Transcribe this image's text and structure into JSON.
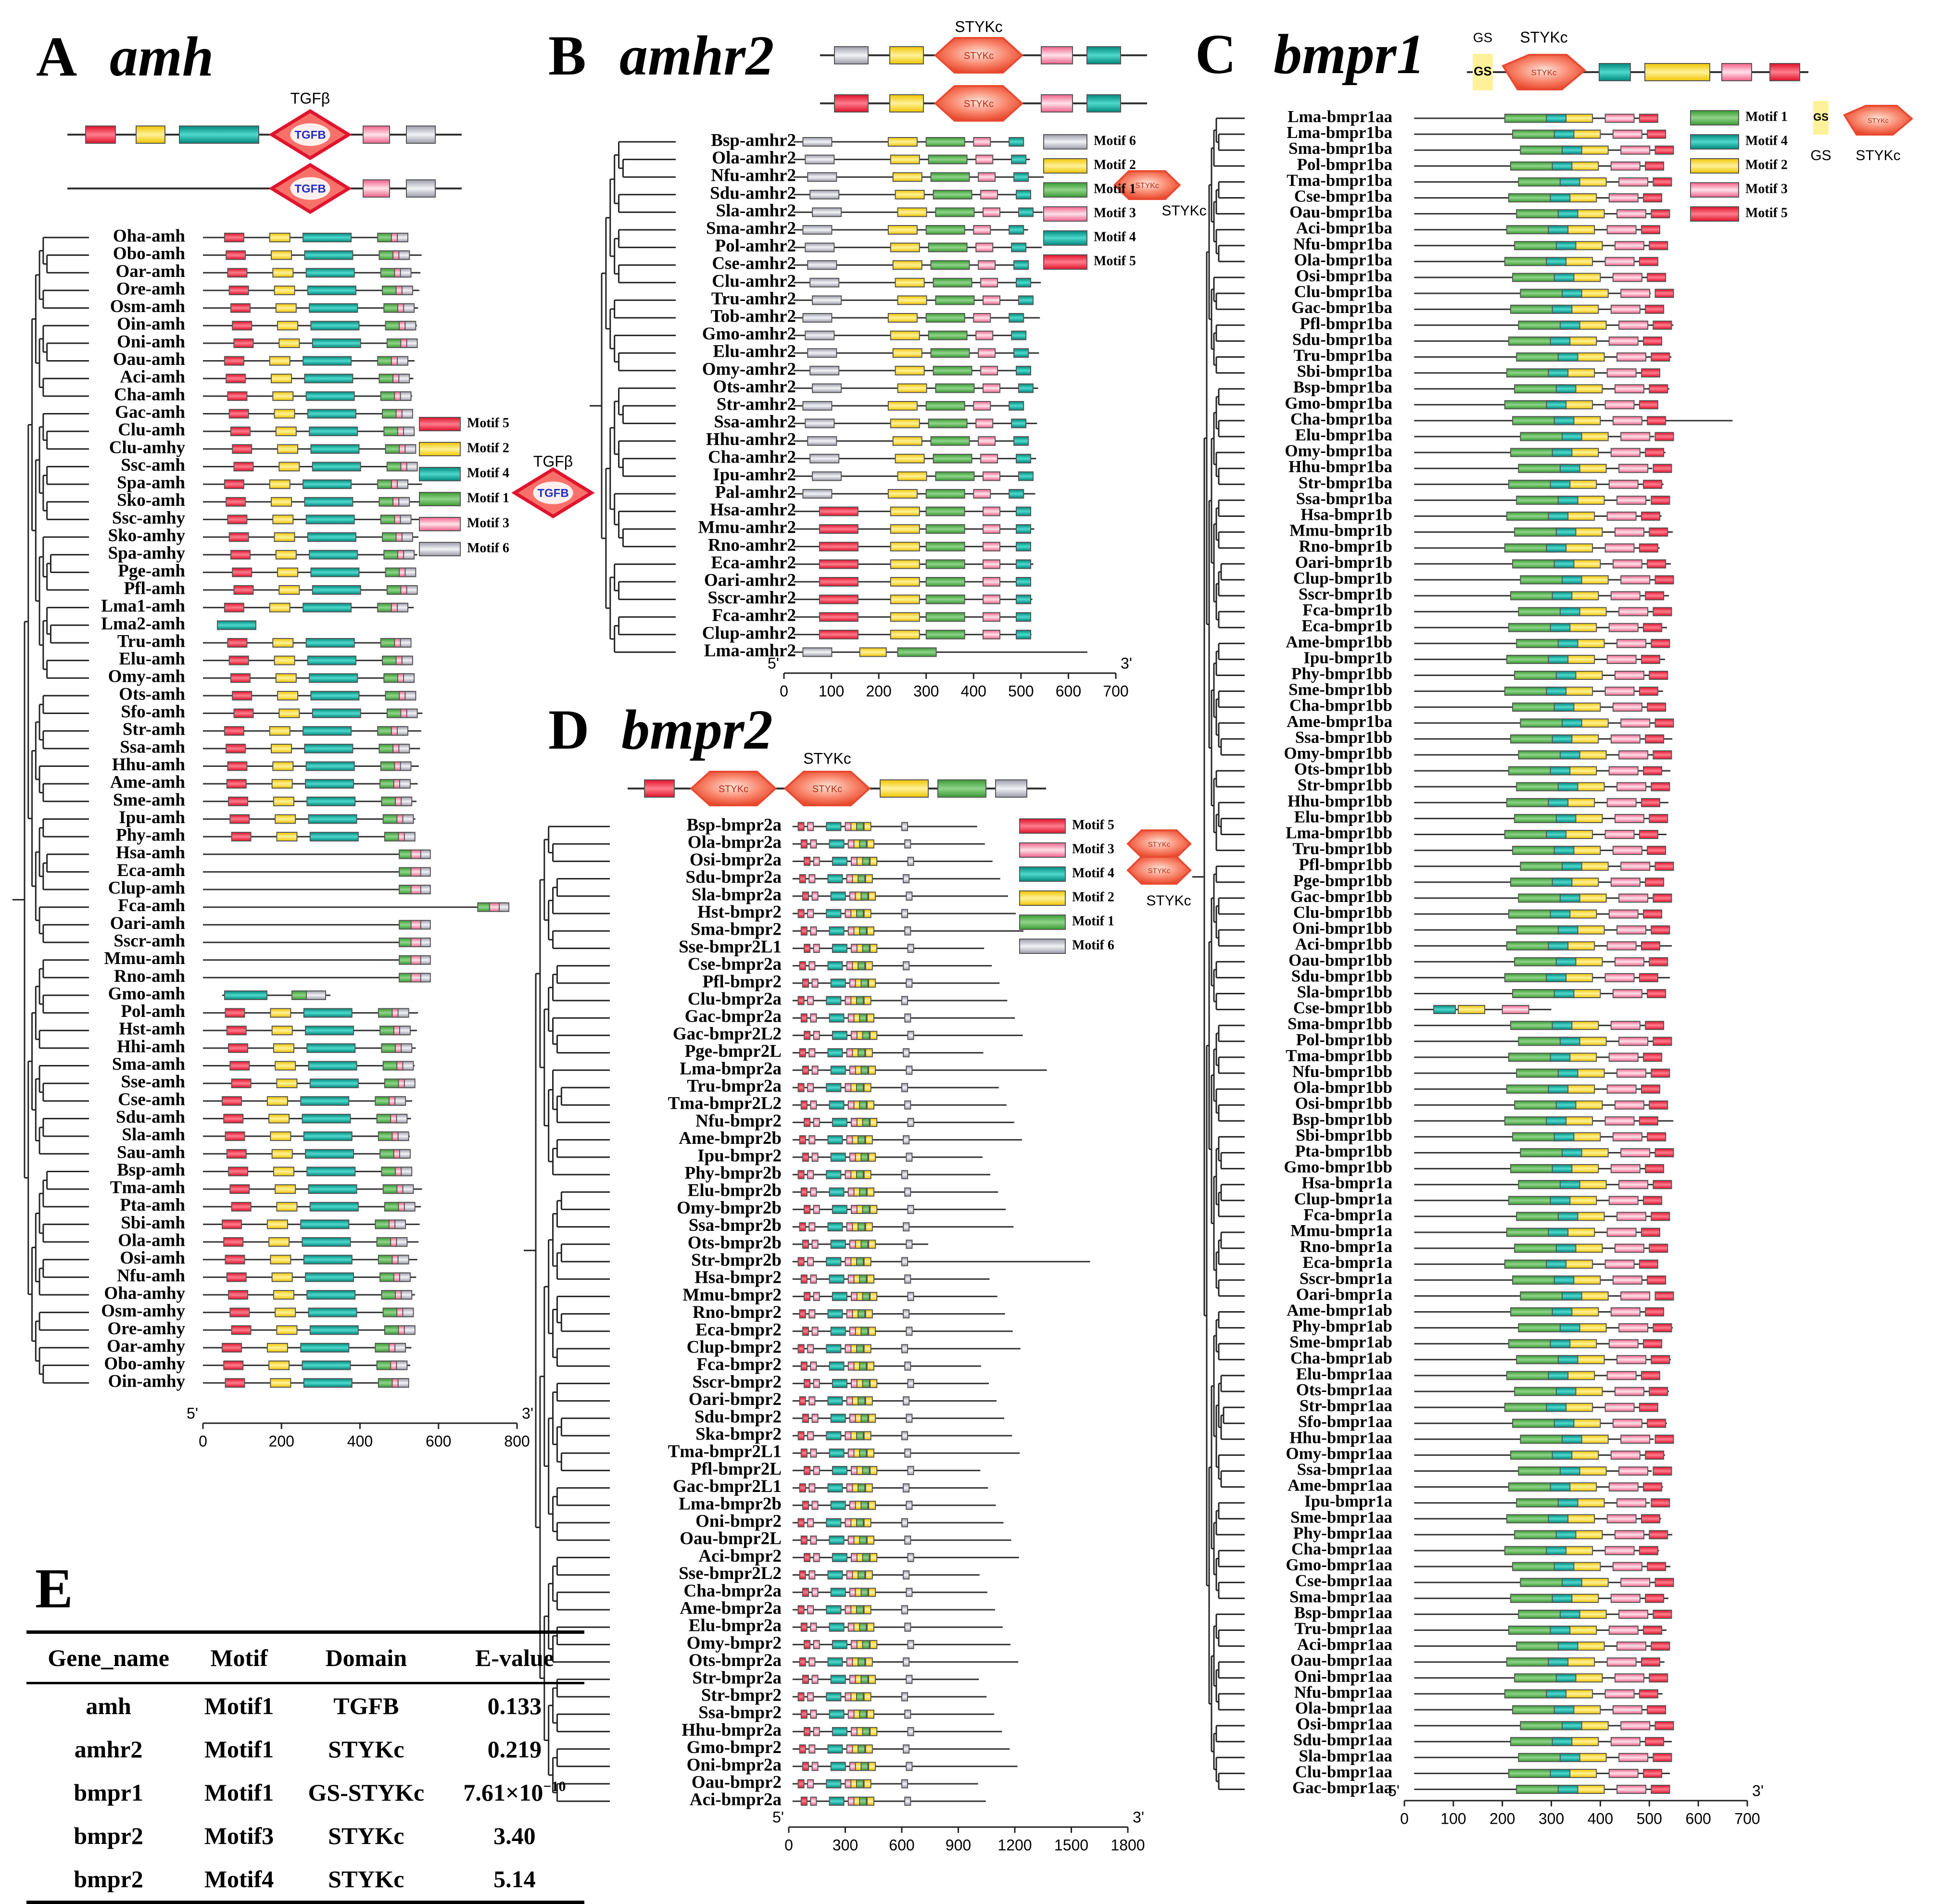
{
  "panels": {
    "A": {
      "letter": "A",
      "gene": "amh",
      "domain": "TGFβ",
      "domain_tag": "TGFB",
      "axis": {
        "start": "5'",
        "end": "3'",
        "ticks": [
          "0",
          "200",
          "400",
          "600",
          "800"
        ],
        "max": 800
      },
      "legend": [
        "Motif 5",
        "Motif 2",
        "Motif 4",
        "Motif 1",
        "Motif 3",
        "Motif 6"
      ],
      "legend_domain": "TGFβ",
      "species": [
        "Oha-amh",
        "Obo-amh",
        "Oar-amh",
        "Ore-amh",
        "Osm-amh",
        "Oin-amh",
        "Oni-amh",
        "Oau-amh",
        "Aci-amh",
        "Cha-amh",
        "Gac-amh",
        "Clu-amh",
        "Clu-amhy",
        "Ssc-amh",
        "Spa-amh",
        "Sko-amh",
        "Ssc-amhy",
        "Sko-amhy",
        "Spa-amhy",
        "Pge-amh",
        "Pfl-amh",
        "Lma1-amh",
        "Lma2-amh",
        "Tru-amh",
        "Elu-amh",
        "Omy-amh",
        "Ots-amh",
        "Sfo-amh",
        "Str-amh",
        "Ssa-amh",
        "Hhu-amh",
        "Ame-amh",
        "Sme-amh",
        "Ipu-amh",
        "Phy-amh",
        "Hsa-amh",
        "Eca-amh",
        "Clup-amh",
        "Fca-amh",
        "Oari-amh",
        "Sscr-amh",
        "Mmu-amh",
        "Rno-amh",
        "Gmo-amh",
        "Pol-amh",
        "Hst-amh",
        "Hhi-amh",
        "Sma-amh",
        "Sse-amh",
        "Cse-amh",
        "Sdu-amh",
        "Sla-amh",
        "Sau-amh",
        "Bsp-amh",
        "Tma-amh",
        "Pta-amh",
        "Sbi-amh",
        "Ola-amh",
        "Osi-amh",
        "Nfu-amh",
        "Oha-amhy",
        "Osm-amhy",
        "Ore-amhy",
        "Oar-amhy",
        "Obo-amhy",
        "Oin-amhy"
      ]
    },
    "B": {
      "letter": "B",
      "gene": "amhr2",
      "domain": "STYKc",
      "axis": {
        "start": "5'",
        "end": "3'",
        "ticks": [
          "0",
          "100",
          "200",
          "300",
          "400",
          "500",
          "600",
          "700"
        ],
        "max": 700
      },
      "legend": [
        "Motif 6",
        "Motif 2",
        "Motif 1",
        "Motif 3",
        "Motif 4",
        "Motif 5"
      ],
      "legend_domain": "STYKc",
      "species": [
        "Bsp-amhr2",
        "Ola-amhr2",
        "Nfu-amhr2",
        "Sdu-amhr2",
        "Sla-amhr2",
        "Sma-amhr2",
        "Pol-amhr2",
        "Cse-amhr2",
        "Clu-amhr2",
        "Tru-amhr2",
        "Tob-amhr2",
        "Gmo-amhr2",
        "Elu-amhr2",
        "Omy-amhr2",
        "Ots-amhr2",
        "Str-amhr2",
        "Ssa-amhr2",
        "Hhu-amhr2",
        "Cha-amhr2",
        "Ipu-amhr2",
        "Pal-amhr2",
        "Hsa-amhr2",
        "Mmu-amhr2",
        "Rno-amhr2",
        "Eca-amhr2",
        "Oari-amhr2",
        "Sscr-amhr2",
        "Fca-amhr2",
        "Clup-amhr2",
        "Lma-amhr2"
      ]
    },
    "C": {
      "letter": "C",
      "gene": "bmpr1",
      "domain": "STYKc",
      "gs": "GS",
      "axis": {
        "start": "5'",
        "end": "3'",
        "ticks": [
          "0",
          "100",
          "200",
          "300",
          "400",
          "500",
          "600",
          "700"
        ],
        "max": 700
      },
      "legend": [
        "Motif 1",
        "Motif 4",
        "Motif 2",
        "Motif 3",
        "Motif 5"
      ],
      "legend_gs": "GS",
      "legend_domain": "STYKc",
      "species": [
        "Lma-bmpr1aa",
        "Lma-bmpr1ba",
        "Sma-bmpr1ba",
        "Pol-bmpr1ba",
        "Tma-bmpr1ba",
        "Cse-bmpr1ba",
        "Oau-bmpr1ba",
        "Aci-bmpr1ba",
        "Nfu-bmpr1ba",
        "Ola-bmpr1ba",
        "Osi-bmpr1ba",
        "Clu-bmpr1ba",
        "Gac-bmpr1ba",
        "Pfl-bmpr1ba",
        "Sdu-bmpr1ba",
        "Tru-bmpr1ba",
        "Sbi-bmpr1ba",
        "Bsp-bmpr1ba",
        "Gmo-bmpr1ba",
        "Cha-bmpr1ba",
        "Elu-bmpr1ba",
        "Omy-bmpr1ba",
        "Hhu-bmpr1ba",
        "Str-bmpr1ba",
        "Ssa-bmpr1ba",
        "Hsa-bmpr1b",
        "Mmu-bmpr1b",
        "Rno-bmpr1b",
        "Oari-bmpr1b",
        "Clup-bmpr1b",
        "Sscr-bmpr1b",
        "Fca-bmpr1b",
        "Eca-bmpr1b",
        "Ame-bmpr1bb",
        "Ipu-bmpr1b",
        "Phy-bmpr1bb",
        "Sme-bmpr1bb",
        "Cha-bmpr1bb",
        "Ame-bmpr1ba",
        "Ssa-bmpr1bb",
        "Omy-bmpr1bb",
        "Ots-bmpr1bb",
        "Str-bmpr1bb",
        "Hhu-bmpr1bb",
        "Elu-bmpr1bb",
        "Lma-bmpr1bb",
        "Tru-bmpr1bb",
        "Pfl-bmpr1bb",
        "Pge-bmpr1bb",
        "Gac-bmpr1bb",
        "Clu-bmpr1bb",
        "Oni-bmpr1bb",
        "Aci-bmpr1bb",
        "Oau-bmpr1bb",
        "Sdu-bmpr1bb",
        "Sla-bmpr1bb",
        "Cse-bmpr1bb",
        "Sma-bmpr1bb",
        "Pol-bmpr1bb",
        "Tma-bmpr1bb",
        "Nfu-bmpr1bb",
        "Ola-bmpr1bb",
        "Osi-bmpr1bb",
        "Bsp-bmpr1bb",
        "Sbi-bmpr1bb",
        "Pta-bmpr1bb",
        "Gmo-bmpr1bb",
        "Hsa-bmpr1a",
        "Clup-bmpr1a",
        "Fca-bmpr1a",
        "Mmu-bmpr1a",
        "Rno-bmpr1a",
        "Eca-bmpr1a",
        "Sscr-bmpr1a",
        "Oari-bmpr1a",
        "Ame-bmpr1ab",
        "Phy-bmpr1ab",
        "Sme-bmpr1ab",
        "Cha-bmpr1ab",
        "Elu-bmpr1aa",
        "Ots-bmpr1aa",
        "Str-bmpr1aa",
        "Sfo-bmpr1aa",
        "Hhu-bmpr1aa",
        "Omy-bmpr1aa",
        "Ssa-bmpr1aa",
        "Ame-bmpr1aa",
        "Ipu-bmpr1a",
        "Sme-bmpr1aa",
        "Phy-bmpr1aa",
        "Cha-bmpr1aa",
        "Gmo-bmpr1aa",
        "Cse-bmpr1aa",
        "Sma-bmpr1aa",
        "Bsp-bmpr1aa",
        "Tru-bmpr1aa",
        "Aci-bmpr1aa",
        "Oau-bmpr1aa",
        "Oni-bmpr1aa",
        "Nfu-bmpr1aa",
        "Ola-bmpr1aa",
        "Osi-bmpr1aa",
        "Sdu-bmpr1aa",
        "Sla-bmpr1aa",
        "Clu-bmpr1aa",
        "Gac-bmpr1aa"
      ]
    },
    "D": {
      "letter": "D",
      "gene": "bmpr2",
      "domain": "STYKc",
      "axis": {
        "start": "5'",
        "end": "3'",
        "ticks": [
          "0",
          "300",
          "600",
          "900",
          "1200",
          "1500",
          "1800"
        ],
        "max": 1800
      },
      "legend": [
        "Motif 5",
        "Motif 3",
        "Motif 4",
        "Motif 2",
        "Motif 1",
        "Motif 6"
      ],
      "legend_domain": "STYKc",
      "species": [
        "Bsp-bmpr2a",
        "Ola-bmpr2a",
        "Osi-bmpr2a",
        "Sdu-bmpr2a",
        "Sla-bmpr2a",
        "Hst-bmpr2",
        "Sma-bmpr2",
        "Sse-bmpr2L1",
        "Cse-bmpr2a",
        "Pfl-bmpr2",
        "Clu-bmpr2a",
        "Gac-bmpr2a",
        "Gac-bmpr2L2",
        "Pge-bmpr2L",
        "Lma-bmpr2a",
        "Tru-bmpr2a",
        "Tma-bmpr2L2",
        "Nfu-bmpr2",
        "Ame-bmpr2b",
        "Ipu-bmpr2",
        "Phy-bmpr2b",
        "Elu-bmpr2b",
        "Omy-bmpr2b",
        "Ssa-bmpr2b",
        "Ots-bmpr2b",
        "Str-bmpr2b",
        "Hsa-bmpr2",
        "Mmu-bmpr2",
        "Rno-bmpr2",
        "Eca-bmpr2",
        "Clup-bmpr2",
        "Fca-bmpr2",
        "Sscr-bmpr2",
        "Oari-bmpr2",
        "Sdu-bmpr2",
        "Ska-bmpr2",
        "Tma-bmpr2L1",
        "Pfl-bmpr2L",
        "Gac-bmpr2L1",
        "Lma-bmpr2b",
        "Oni-bmpr2",
        "Oau-bmpr2L",
        "Aci-bmpr2",
        "Sse-bmpr2L2",
        "Cha-bmpr2a",
        "Ame-bmpr2a",
        "Elu-bmpr2a",
        "Omy-bmpr2",
        "Ots-bmpr2a",
        "Str-bmpr2a",
        "Str-bmpr2",
        "Ssa-bmpr2",
        "Hhu-bmpr2a",
        "Gmo-bmpr2",
        "Oni-bmpr2a",
        "Oau-bmpr2",
        "Aci-bmpr2a"
      ]
    }
  },
  "table": {
    "letter": "E",
    "headers": [
      "Gene_name",
      "Motif",
      "Domain",
      "E-value"
    ],
    "rows": [
      [
        "amh",
        "Motif1",
        "TGFB",
        "0.133"
      ],
      [
        "amhr2",
        "Motif1",
        "STYKc",
        "0.219"
      ],
      [
        "bmpr1",
        "Motif1",
        "GS-STYKc",
        "7.61×10",
        "−10"
      ],
      [
        "bmpr2",
        "Motif3",
        "STYKc",
        "3.40"
      ],
      [
        "bmpr2",
        "Motif4",
        "STYKc",
        "5.14"
      ]
    ]
  },
  "colors": {
    "motif1": "#5bb04f",
    "motif2": "#f4d12b",
    "motif3": "#f07a9a",
    "motif4": "#11958c",
    "motif5": "#e8203c",
    "motif6": "#a8a8b6",
    "domain": "#f46a4e",
    "gs": "#fdf29a"
  }
}
